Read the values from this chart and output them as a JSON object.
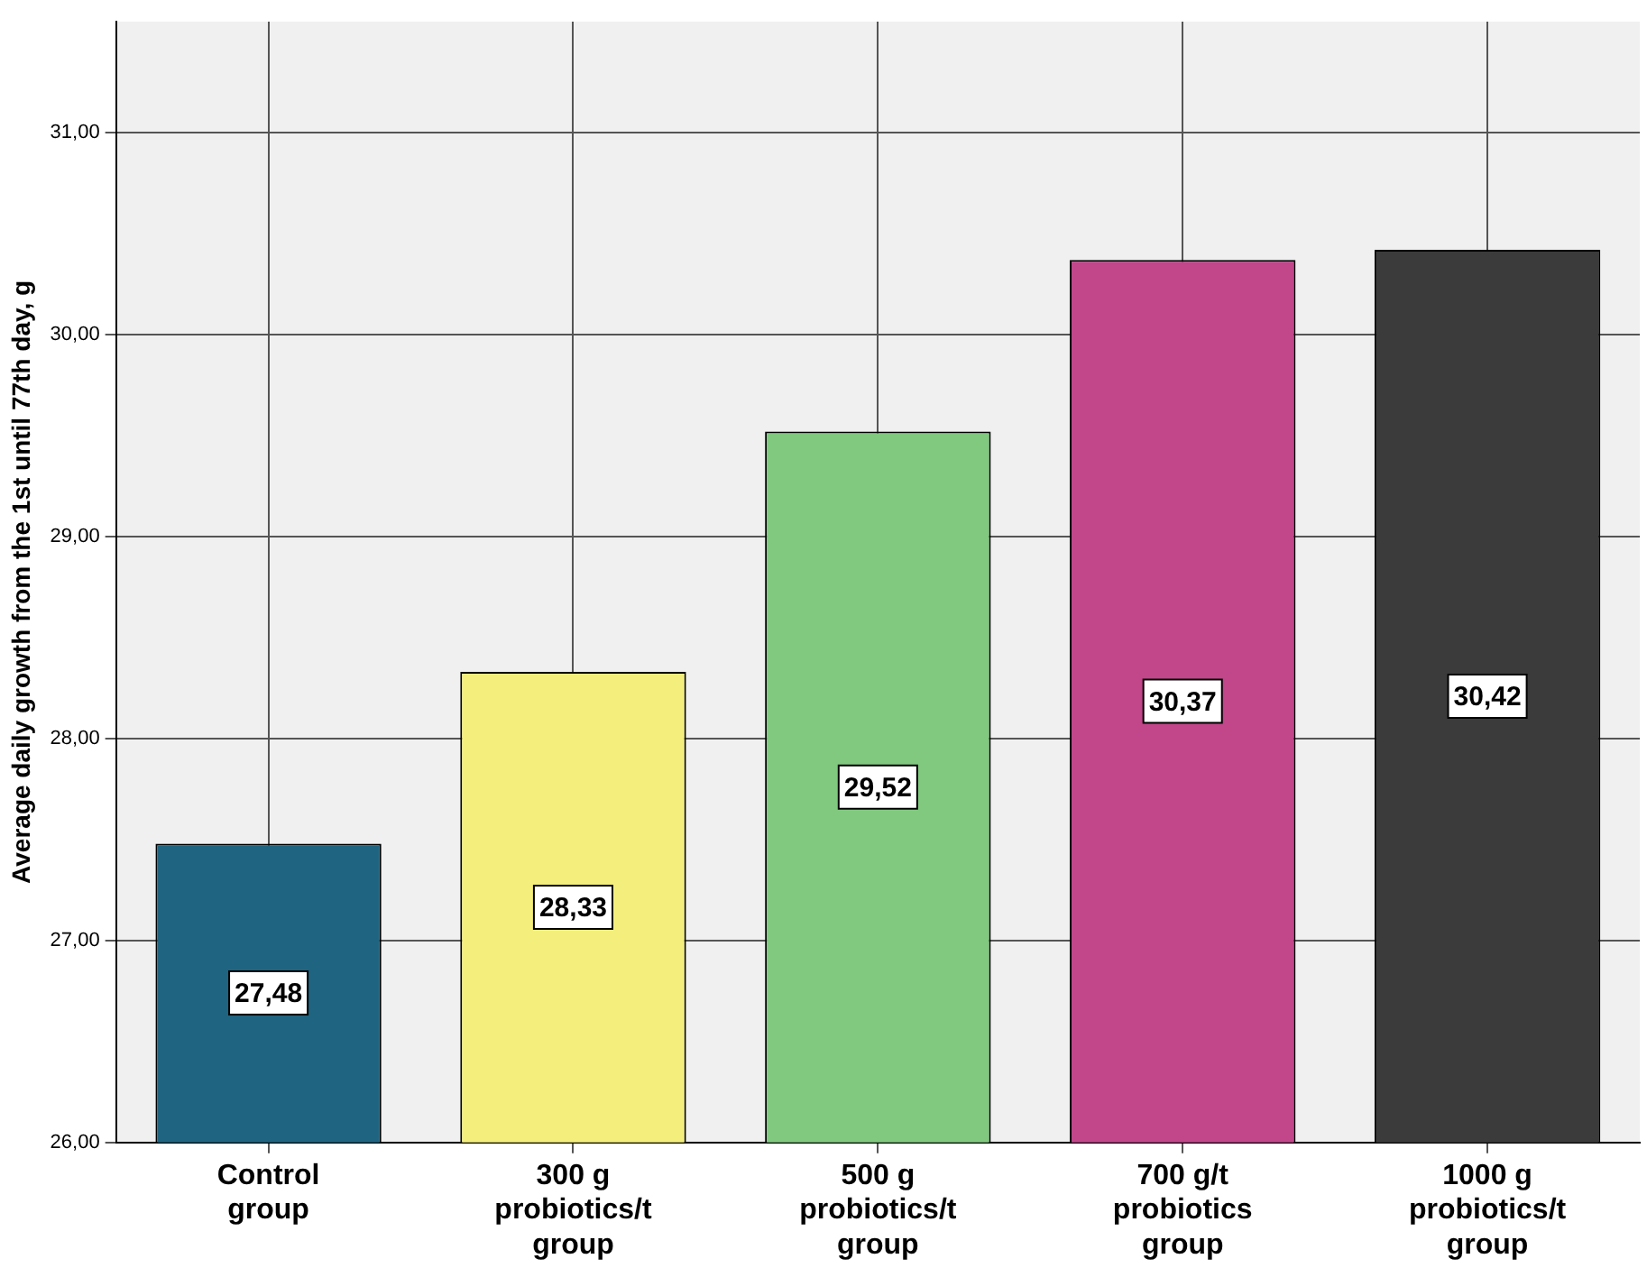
{
  "chart_data": {
    "type": "bar",
    "ylabel": "Average daily growth from the 1st until 77th day, g",
    "categories": [
      "Control\ngroup",
      "300 g\nprobiotics/t\ngroup",
      "500 g\nprobiotics/t\ngroup",
      "700 g/t\nprobiotics\ngroup",
      "1000 g\nprobiotics/t\ngroup"
    ],
    "values": [
      27.48,
      28.33,
      29.52,
      30.37,
      30.42
    ],
    "colors": [
      "#1f6480",
      "#f4ef7c",
      "#80c97f",
      "#c1468a",
      "#3b3b3b"
    ],
    "value_labels": [
      "27,48",
      "28,33",
      "29,52",
      "30,37",
      "30,42"
    ],
    "ylim": [
      26,
      31.55
    ],
    "yticks": [
      {
        "value": 26,
        "label": "26,00"
      },
      {
        "value": 27,
        "label": "27,00"
      },
      {
        "value": 28,
        "label": "28,00"
      },
      {
        "value": 29,
        "label": "29,00"
      },
      {
        "value": 30,
        "label": "30,00"
      },
      {
        "value": 31,
        "label": "31,00"
      }
    ],
    "grid": true
  }
}
